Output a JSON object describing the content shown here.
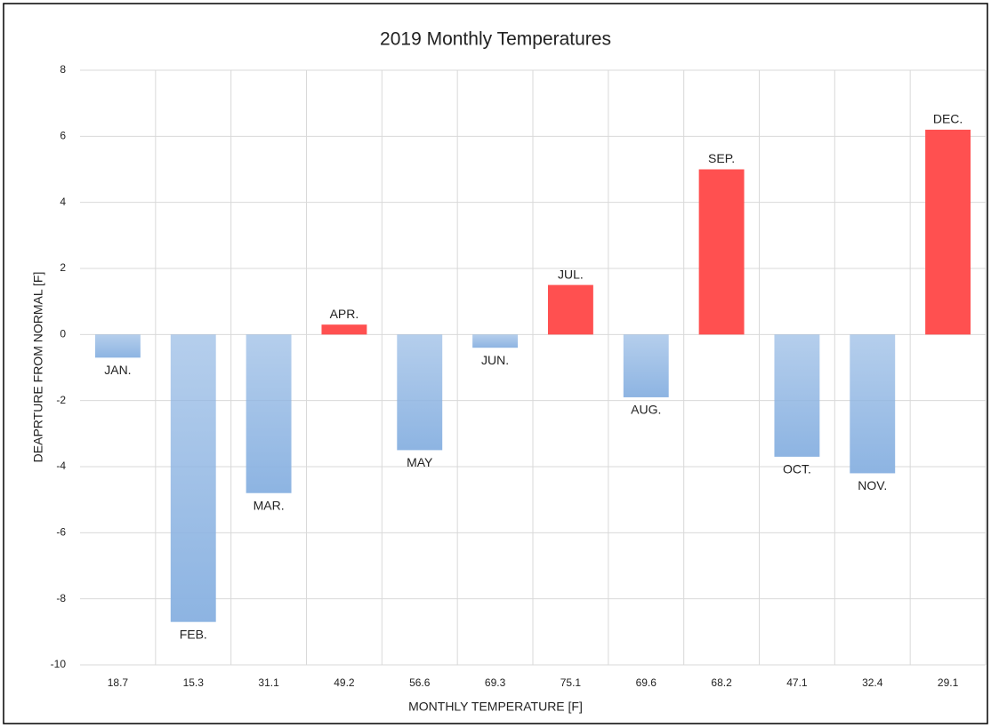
{
  "chart_data": {
    "type": "bar",
    "title": "2019 Monthly Temperatures",
    "x_label": "MONTHLY TEMPERATURE [F]",
    "y_label": "DEAPRTURE FROM NORMAL [F]",
    "categories": [
      "18.7",
      "15.3",
      "31.1",
      "49.2",
      "56.6",
      "69.3",
      "75.1",
      "69.6",
      "68.2",
      "47.1",
      "32.4",
      "29.1"
    ],
    "values": [
      -0.7,
      -8.7,
      -4.8,
      0.3,
      -3.5,
      -0.4,
      1.5,
      -1.9,
      5.0,
      -3.7,
      -4.2,
      6.2
    ],
    "point_labels": [
      "JAN.",
      "FEB.",
      "MAR.",
      "APR.",
      "MAY",
      "JUN.",
      "JUL.",
      "AUG.",
      "SEP.",
      "OCT.",
      "NOV.",
      "DEC."
    ],
    "positive_color": "#ff5050",
    "negative_color": "#8db4e2",
    "ylim": [
      -10,
      8
    ],
    "yticks": [
      -10,
      -8,
      -6,
      -4,
      -2,
      0,
      2,
      4,
      6,
      8
    ],
    "grid": true
  }
}
